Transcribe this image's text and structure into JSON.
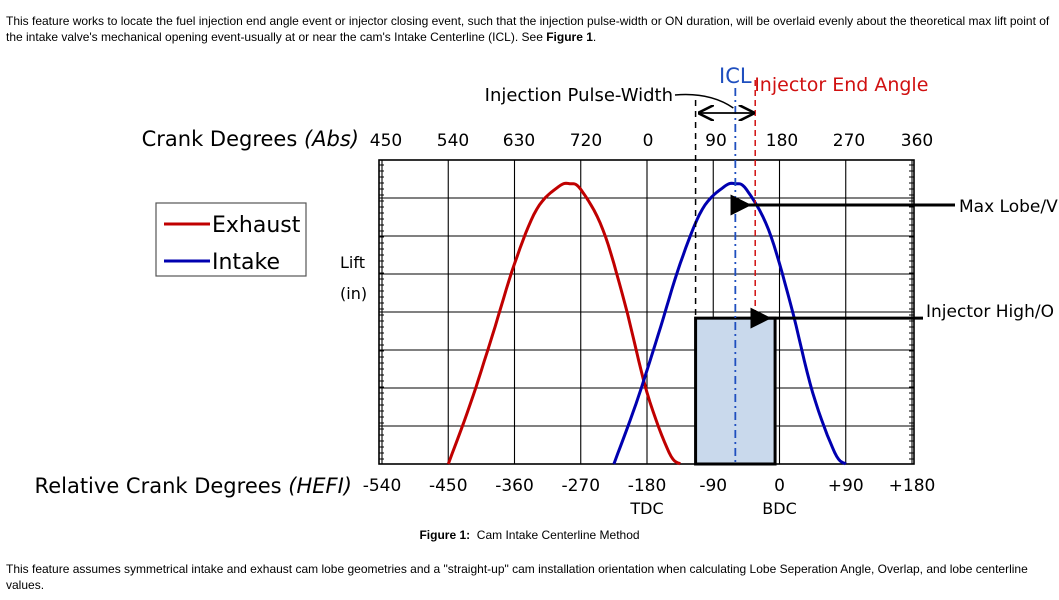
{
  "intro": {
    "text": "This feature works to locate the fuel injection end angle event or injector closing event, such that the injection pulse-width or ON duration, will be overlaid evenly about the theoretical max lift point of the intake valve's mechanical opening event-usually at or near the cam's Intake Centerline (ICL).  See ",
    "fig_ref": "Figure 1",
    "end": "."
  },
  "caption": {
    "prefix": "Figure 1:",
    "text": "Cam Intake Centerline Method"
  },
  "outro": {
    "text": "This feature assumes symmetrical intake and exhaust cam lobe geometries and a \"straight-up\" cam installation orientation when calculating Lobe Seperation Angle, Overlap, and lobe centerline values."
  },
  "chart_data": {
    "type": "line",
    "top_axis": {
      "label_main": "Crank Degrees ",
      "label_em": "(Abs)",
      "ticks": [
        "450",
        "540",
        "630",
        "720",
        "0",
        "90",
        "180",
        "270",
        "360"
      ]
    },
    "bottom_axis": {
      "label_main": "Relative Crank Degrees ",
      "label_em": "(HEFI)",
      "ticks": [
        "-540",
        "-450",
        "-360",
        "-270",
        "-180",
        "-90",
        "0",
        "+90",
        "+180"
      ],
      "tdc": "TDC",
      "bdc": "BDC"
    },
    "xlim": [
      -540,
      180
    ],
    "y_label_1": "Lift",
    "y_label_2": "(in)",
    "ylim": [
      0,
      10
    ],
    "grid": true,
    "legend": {
      "position": "top-left",
      "entries": [
        {
          "name": "Exhaust",
          "color": "#c00000"
        },
        {
          "name": "Intake",
          "color": "#0000b0"
        }
      ]
    },
    "series": [
      {
        "name": "Exhaust",
        "color": "#c00000",
        "x": [
          -450,
          -420,
          -390,
          -360,
          -330,
          -300,
          -285,
          -270,
          -240,
          -210,
          -180,
          -150,
          -135
        ],
        "y": [
          0,
          2.1,
          4.5,
          7.0,
          8.9,
          9.7,
          9.8,
          9.6,
          8.2,
          5.6,
          2.5,
          0.4,
          0
        ]
      },
      {
        "name": "Intake",
        "color": "#0000b0",
        "x": [
          -225,
          -195,
          -165,
          -135,
          -105,
          -75,
          -60,
          -45,
          -15,
          15,
          45,
          75,
          90
        ],
        "y": [
          0,
          2.1,
          4.5,
          7.0,
          8.9,
          9.7,
          9.8,
          9.6,
          8.2,
          5.6,
          2.5,
          0.4,
          0
        ]
      }
    ],
    "annotations": {
      "icl": {
        "text": "ICL",
        "x": -60,
        "color": "#1f4fbf"
      },
      "injector_end_angle": {
        "text": "Injector End Angle",
        "x": -33,
        "color": "#d01010"
      },
      "pulse_width": {
        "text": "Injection Pulse-Width",
        "start_x": -114,
        "end_x": -6
      },
      "max_lobe": {
        "text": "Max Lobe/V"
      },
      "injector_high": {
        "text": "Injector High/O",
        "level": 5.1,
        "fill": "#c9d9ec"
      }
    }
  }
}
